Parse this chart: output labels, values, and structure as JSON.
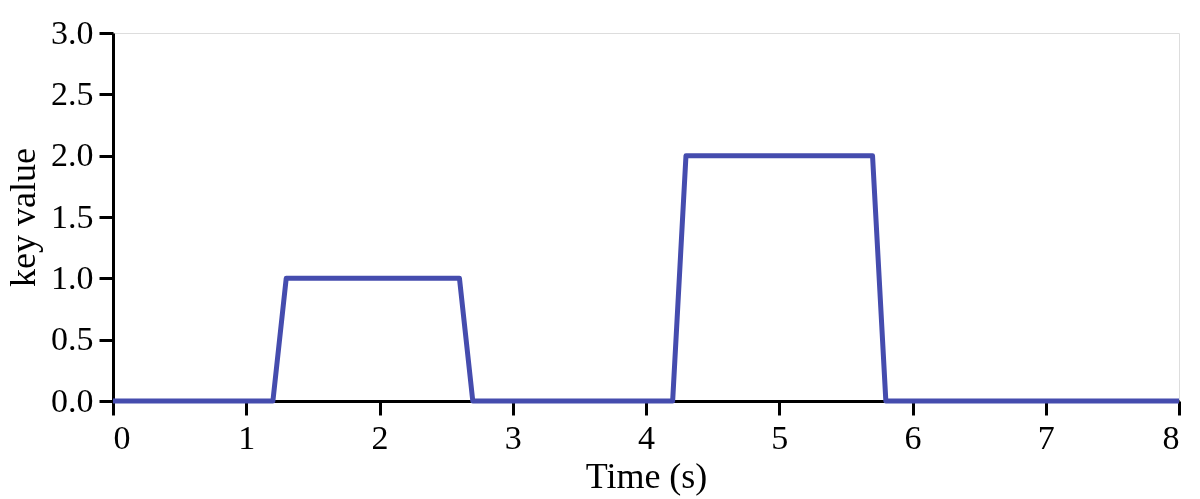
{
  "chart_data": {
    "type": "line",
    "xlabel": "Time (s)",
    "ylabel": "key value",
    "series": [
      {
        "color": "#454cae",
        "x": [
          0,
          1.2,
          1.3,
          2.6,
          2.7,
          4.2,
          4.3,
          5.7,
          5.8,
          8
        ],
        "values": [
          0,
          0,
          1,
          1,
          0,
          0,
          2,
          2,
          0,
          0
        ]
      }
    ],
    "xlim": [
      0,
      8
    ],
    "xticks": [
      0,
      1,
      2,
      3,
      4,
      5,
      6,
      7,
      8
    ],
    "ylim": [
      0,
      3
    ],
    "yticks": [
      {
        "value": 0,
        "label": "0.0"
      },
      {
        "value": 0.5,
        "label": "0.5"
      },
      {
        "value": 1,
        "label": "1.0"
      },
      {
        "value": 1.5,
        "label": "1.5"
      },
      {
        "value": 2,
        "label": "2.0"
      },
      {
        "value": 2.5,
        "label": "2.5"
      },
      {
        "value": 3,
        "label": "3.0"
      }
    ],
    "grid": false,
    "marker": "none",
    "line_style": "solid"
  }
}
